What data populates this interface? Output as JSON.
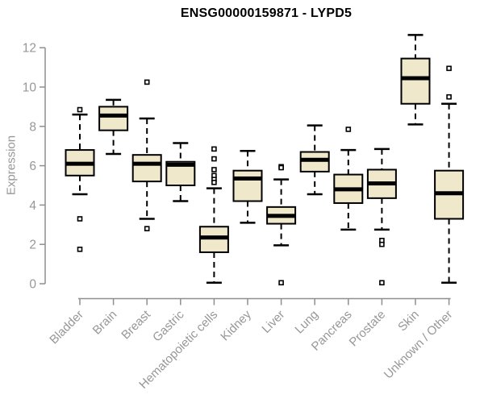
{
  "chart_data": {
    "type": "boxplot",
    "title": "ENSG00000159871 - LYPD5",
    "ylabel": "Expression",
    "xlabel": "",
    "ylim": [
      0,
      12
    ],
    "y_ticks": [
      0,
      2,
      4,
      6,
      8,
      10,
      12
    ],
    "grid": false,
    "legend": "none",
    "categories": [
      "Bladder",
      "Brain",
      "Breast",
      "Gastric",
      "Hematopoietic cells",
      "Kidney",
      "Liver",
      "Lung",
      "Pancreas",
      "Prostate",
      "Skin",
      "Unknown / Other"
    ],
    "series": [
      {
        "category": "Bladder",
        "whisker_low": 4.55,
        "q1": 5.5,
        "median": 6.1,
        "q3": 6.8,
        "whisker_high": 8.6,
        "outliers": [
          8.85,
          3.3,
          1.75
        ]
      },
      {
        "category": "Brain",
        "whisker_low": 6.6,
        "q1": 7.8,
        "median": 8.55,
        "q3": 9.0,
        "whisker_high": 9.35,
        "outliers": []
      },
      {
        "category": "Breast",
        "whisker_low": 3.3,
        "q1": 5.2,
        "median": 6.1,
        "q3": 6.55,
        "whisker_high": 8.4,
        "outliers": [
          10.25,
          2.8
        ]
      },
      {
        "category": "Gastric",
        "whisker_low": 4.2,
        "q1": 5.0,
        "median": 6.05,
        "q3": 6.2,
        "whisker_high": 7.15,
        "outliers": []
      },
      {
        "category": "Hematopoietic cells",
        "whisker_low": 0.05,
        "q1": 1.6,
        "median": 2.35,
        "q3": 2.9,
        "whisker_high": 4.85,
        "outliers": [
          6.85,
          6.35,
          5.8,
          5.5,
          5.3,
          5.15
        ]
      },
      {
        "category": "Kidney",
        "whisker_low": 3.1,
        "q1": 4.2,
        "median": 5.35,
        "q3": 5.75,
        "whisker_high": 6.75,
        "outliers": []
      },
      {
        "category": "Liver",
        "whisker_low": 1.95,
        "q1": 3.05,
        "median": 3.45,
        "q3": 3.9,
        "whisker_high": 5.3,
        "outliers": [
          5.95,
          5.9,
          0.05
        ]
      },
      {
        "category": "Lung",
        "whisker_low": 4.55,
        "q1": 5.7,
        "median": 6.3,
        "q3": 6.7,
        "whisker_high": 8.05,
        "outliers": []
      },
      {
        "category": "Pancreas",
        "whisker_low": 2.75,
        "q1": 4.1,
        "median": 4.8,
        "q3": 5.55,
        "whisker_high": 6.8,
        "outliers": [
          7.85
        ]
      },
      {
        "category": "Prostate",
        "whisker_low": 2.75,
        "q1": 4.35,
        "median": 5.1,
        "q3": 5.8,
        "whisker_high": 6.85,
        "outliers": [
          2.2,
          2.0,
          0.05
        ]
      },
      {
        "category": "Skin",
        "whisker_low": 8.1,
        "q1": 9.15,
        "median": 10.45,
        "q3": 11.45,
        "whisker_high": 12.65,
        "outliers": []
      },
      {
        "category": "Unknown / Other",
        "whisker_low": 0.05,
        "q1": 3.3,
        "median": 4.6,
        "q3": 5.75,
        "whisker_high": 9.15,
        "outliers": [
          10.95,
          9.5
        ]
      }
    ],
    "colors": {
      "box_fill": "#EFE8CB",
      "box_stroke": "#000000",
      "median": "#000000",
      "whisker": "#000000",
      "outlier_fill": "#FFFFFF",
      "axis": "#8F8F8F",
      "tick_label": "#979797",
      "title": "#000000",
      "background": "#FFFFFF"
    }
  }
}
